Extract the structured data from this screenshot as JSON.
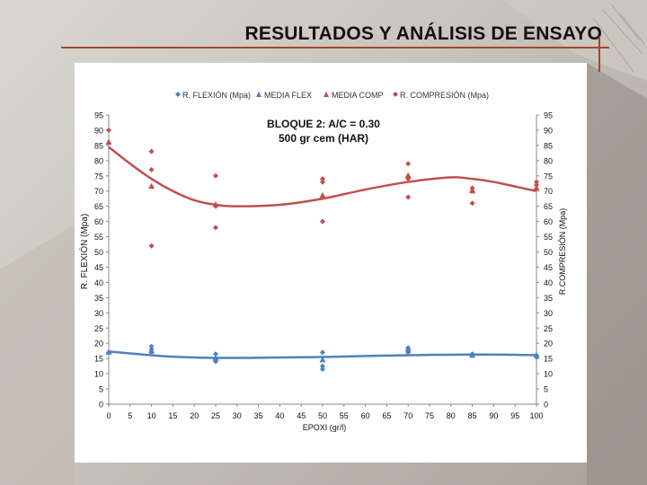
{
  "slide": {
    "title": "RESULTADOS Y ANÁLISIS DE ENSAYO"
  },
  "colors": {
    "flex": "#4f81bd",
    "comp": "#c0504d",
    "accent": "#a5452b"
  },
  "chart_data": {
    "type": "scatter",
    "title": "BLOQUE 2: A/C = 0.30",
    "subtitle": "500 gr cem (HAR)",
    "xlabel": "EPOXI (gr/l)",
    "ylabel": "R. FLEXIÓN (Mpa)",
    "y2label": "R.COMPRESIÓN (Mpa)",
    "xlim": [
      0,
      100
    ],
    "ylim": [
      0,
      95
    ],
    "y2lim": [
      0,
      95
    ],
    "xticks": [
      0,
      5,
      10,
      15,
      20,
      25,
      30,
      35,
      40,
      45,
      50,
      55,
      60,
      65,
      70,
      75,
      80,
      85,
      90,
      95,
      100
    ],
    "yticks": [
      0,
      5,
      10,
      15,
      20,
      25,
      30,
      35,
      40,
      45,
      50,
      55,
      60,
      65,
      70,
      75,
      80,
      85,
      90,
      95
    ],
    "grid": false,
    "legend": [
      "R. FLEXIÓN (Mpa)",
      "MEDIA FLEX",
      "MEDIA COMP",
      "R. COMPRESIÓN (Mpa)"
    ],
    "legend_position": "top",
    "series": [
      {
        "name": "R. FLEXIÓN (Mpa)",
        "marker": "diamond",
        "color": "#4f81bd",
        "x": [
          0,
          10,
          10,
          10,
          25,
          25,
          25,
          50,
          50,
          50,
          70,
          70,
          70,
          85,
          85,
          100,
          100
        ],
        "y": [
          17,
          19,
          18,
          17,
          16.5,
          15,
          14,
          17,
          12.5,
          11.5,
          18.5,
          18,
          17,
          16,
          16.5,
          16,
          15.5
        ]
      },
      {
        "name": "MEDIA FLEX",
        "marker": "triangle",
        "color": "#4f81bd",
        "x": [
          0,
          10,
          25,
          50,
          70,
          85,
          100
        ],
        "y": [
          17,
          17.5,
          15,
          14.5,
          18,
          16,
          16
        ]
      },
      {
        "name": "MEDIA COMP",
        "marker": "triangle",
        "color": "#c0504d",
        "x": [
          0,
          10,
          25,
          50,
          70,
          85,
          100
        ],
        "y": [
          86,
          71.5,
          65.5,
          68.5,
          75,
          70,
          71
        ]
      },
      {
        "name": "R. COMPRESIÓN (Mpa)",
        "marker": "diamond",
        "color": "#c0504d",
        "x": [
          0,
          10,
          10,
          10,
          25,
          25,
          25,
          50,
          50,
          50,
          70,
          70,
          70,
          85,
          85,
          85,
          100,
          100
        ],
        "y": [
          90,
          83,
          77,
          52,
          75,
          65,
          58,
          74,
          73,
          60,
          79,
          74,
          68,
          71,
          70,
          66,
          73,
          72
        ]
      }
    ],
    "trendlines": [
      {
        "of": "R. FLEXIÓN (Mpa)",
        "type": "polynomial",
        "color": "#4f81bd",
        "x": [
          0,
          12.5,
          25,
          37.5,
          50,
          62.5,
          75,
          87.5,
          100
        ],
        "y": [
          17.3,
          15.8,
          15.2,
          15.3,
          15.5,
          15.9,
          16.2,
          16.3,
          16.1
        ]
      },
      {
        "of": "R. COMPRESIÓN (Mpa)",
        "type": "polynomial",
        "color": "#c0504d",
        "x": [
          0,
          5,
          10,
          15,
          20,
          25,
          30,
          40,
          50,
          60,
          70,
          80,
          85,
          90,
          95,
          100
        ],
        "y": [
          84.5,
          79,
          74,
          70,
          67,
          65.5,
          65,
          65.5,
          67.5,
          70.5,
          73,
          74.5,
          74,
          73,
          71.5,
          70
        ]
      }
    ]
  }
}
